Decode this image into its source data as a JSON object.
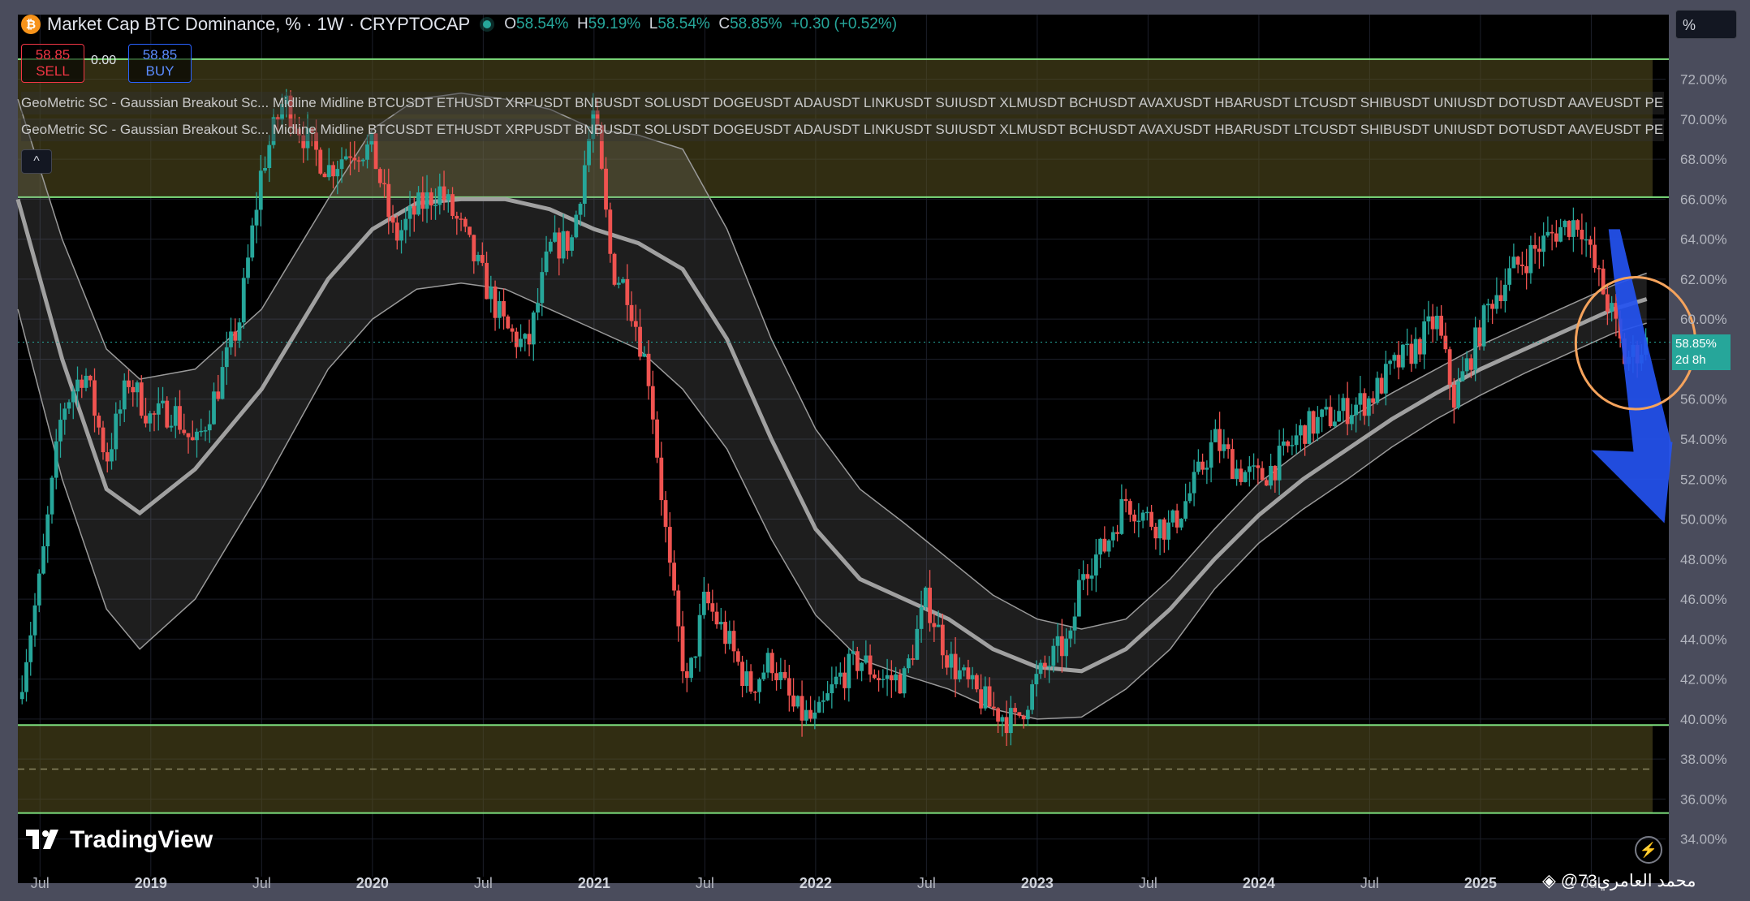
{
  "header": {
    "coin_symbol": "₿",
    "title": "Market Cap BTC Dominance, % · 1W · CRYPTOCAP",
    "ohlc": [
      {
        "k": "O",
        "v": "58.54%"
      },
      {
        "k": "H",
        "v": "59.19%"
      },
      {
        "k": "L",
        "v": "58.54%"
      },
      {
        "k": "C",
        "v": "58.85%"
      },
      {
        "k": "",
        "v": "+0.30 (+0.52%)"
      }
    ]
  },
  "trade": {
    "sell_price": "58.85",
    "sell_label": "SELL",
    "spread": "0.00",
    "buy_price": "58.85",
    "buy_label": "BUY"
  },
  "indicators": [
    "GeoMetric SC - Gaussian Breakout Sc... Midline Midline BTCUSDT ETHUSDT XRPUSDT BNBUSDT SOLUSDT DOGEUSDT ADAUSDT LINKUSDT SUIUSDT XLMUSDT BCHUSDT AVAXUSDT HBARUSDT LTCUSDT SHIBUSDT UNIUSDT DOTUSDT AAVEUSDT PE",
    "GeoMetric SC - Gaussian Breakout Sc... Midline Midline BTCUSDT ETHUSDT XRPUSDT BNBUSDT SOLUSDT DOGEUSDT ADAUSDT LINKUSDT SUIUSDT XLMUSDT BCHUSDT AVAXUSDT HBARUSDT LTCUSDT SHIBUSDT UNIUSDT DOTUSDT AAVEUSDT PE"
  ],
  "collapse_glyph": "^",
  "scale_button": "%",
  "last_price": {
    "value": "58.85%",
    "countdown": "2d 8h"
  },
  "logo": "TradingView",
  "watermark": "@محمد العامري73",
  "colors": {
    "up": "#26a69a",
    "down": "#ef5350",
    "zone": "#5a5220",
    "zone_line": "#7ee07e",
    "arrow": "#2452f0",
    "circle": "#f5a35c"
  },
  "chart_data": {
    "type": "candlestick",
    "timeframe": "1W",
    "y_unit": "%",
    "ylim": [
      33.5,
      73.2
    ],
    "y_ticks": [
      34,
      36,
      38,
      40,
      42,
      44,
      46,
      48,
      50,
      52,
      54,
      56,
      58,
      60,
      62,
      64,
      66,
      68,
      70,
      72
    ],
    "x_range": [
      2018.4,
      2025.85
    ],
    "x_ticks": [
      {
        "t": 2018.5,
        "label": "Jul"
      },
      {
        "t": 2019.0,
        "label": "2019"
      },
      {
        "t": 2019.5,
        "label": "Jul"
      },
      {
        "t": 2020.0,
        "label": "2020"
      },
      {
        "t": 2020.5,
        "label": "Jul"
      },
      {
        "t": 2021.0,
        "label": "2021"
      },
      {
        "t": 2021.5,
        "label": "Jul"
      },
      {
        "t": 2022.0,
        "label": "2022"
      },
      {
        "t": 2022.5,
        "label": "Jul"
      },
      {
        "t": 2023.0,
        "label": "2023"
      },
      {
        "t": 2023.5,
        "label": "Jul"
      },
      {
        "t": 2024.0,
        "label": "2024"
      },
      {
        "t": 2024.5,
        "label": "Jul"
      },
      {
        "t": 2025.0,
        "label": "2025"
      },
      {
        "t": 2025.5,
        "label": "Jul"
      }
    ],
    "price_path": [
      [
        2018.4,
        41.0
      ],
      [
        2018.5,
        47.0
      ],
      [
        2018.6,
        55.5
      ],
      [
        2018.7,
        57.5
      ],
      [
        2018.8,
        53.0
      ],
      [
        2018.9,
        57.0
      ],
      [
        2019.0,
        55.0
      ],
      [
        2019.1,
        55.5
      ],
      [
        2019.2,
        53.5
      ],
      [
        2019.3,
        56.5
      ],
      [
        2019.4,
        60.0
      ],
      [
        2019.5,
        67.5
      ],
      [
        2019.6,
        71.0
      ],
      [
        2019.7,
        69.0
      ],
      [
        2019.8,
        67.5
      ],
      [
        2019.9,
        68.5
      ],
      [
        2020.0,
        68.5
      ],
      [
        2020.1,
        64.0
      ],
      [
        2020.2,
        65.5
      ],
      [
        2020.3,
        66.5
      ],
      [
        2020.4,
        64.5
      ],
      [
        2020.5,
        62.0
      ],
      [
        2020.6,
        59.5
      ],
      [
        2020.7,
        58.5
      ],
      [
        2020.8,
        63.5
      ],
      [
        2020.9,
        64.0
      ],
      [
        2021.0,
        70.5
      ],
      [
        2021.08,
        62.5
      ],
      [
        2021.15,
        61.5
      ],
      [
        2021.25,
        57.0
      ],
      [
        2021.35,
        46.5
      ],
      [
        2021.42,
        41.5
      ],
      [
        2021.5,
        46.0
      ],
      [
        2021.6,
        44.0
      ],
      [
        2021.7,
        41.5
      ],
      [
        2021.8,
        43.0
      ],
      [
        2021.9,
        40.5
      ],
      [
        2022.0,
        39.8
      ],
      [
        2022.1,
        42.0
      ],
      [
        2022.2,
        43.0
      ],
      [
        2022.3,
        42.0
      ],
      [
        2022.4,
        42.0
      ],
      [
        2022.5,
        46.0
      ],
      [
        2022.6,
        43.0
      ],
      [
        2022.7,
        41.5
      ],
      [
        2022.8,
        40.5
      ],
      [
        2022.9,
        39.8
      ],
      [
        2023.0,
        42.0
      ],
      [
        2023.1,
        43.5
      ],
      [
        2023.15,
        43.8
      ],
      [
        2023.2,
        47.5
      ],
      [
        2023.3,
        48.5
      ],
      [
        2023.4,
        51.0
      ],
      [
        2023.5,
        50.0
      ],
      [
        2023.6,
        49.5
      ],
      [
        2023.7,
        51.5
      ],
      [
        2023.8,
        54.0
      ],
      [
        2023.9,
        52.5
      ],
      [
        2024.0,
        52.0
      ],
      [
        2024.1,
        53.0
      ],
      [
        2024.2,
        54.5
      ],
      [
        2024.3,
        55.0
      ],
      [
        2024.4,
        55.5
      ],
      [
        2024.5,
        56.0
      ],
      [
        2024.6,
        57.5
      ],
      [
        2024.7,
        58.5
      ],
      [
        2024.8,
        60.0
      ],
      [
        2024.88,
        56.0
      ],
      [
        2024.95,
        58.0
      ],
      [
        2025.05,
        61.0
      ],
      [
        2025.15,
        62.5
      ],
      [
        2025.25,
        63.5
      ],
      [
        2025.35,
        64.5
      ],
      [
        2025.45,
        65.0
      ],
      [
        2025.5,
        63.0
      ],
      [
        2025.55,
        61.5
      ],
      [
        2025.6,
        60.0
      ],
      [
        2025.65,
        58.0
      ],
      [
        2025.7,
        58.3
      ],
      [
        2025.75,
        58.85
      ]
    ],
    "gaussian_midline": [
      [
        2018.4,
        66.0
      ],
      [
        2018.6,
        58.0
      ],
      [
        2018.8,
        51.5
      ],
      [
        2018.95,
        50.3
      ],
      [
        2019.2,
        52.5
      ],
      [
        2019.5,
        56.5
      ],
      [
        2019.8,
        62.0
      ],
      [
        2020.0,
        64.5
      ],
      [
        2020.2,
        65.8
      ],
      [
        2020.4,
        66.0
      ],
      [
        2020.6,
        66.0
      ],
      [
        2020.8,
        65.5
      ],
      [
        2021.0,
        64.5
      ],
      [
        2021.2,
        63.8
      ],
      [
        2021.4,
        62.5
      ],
      [
        2021.6,
        59.0
      ],
      [
        2021.8,
        54.0
      ],
      [
        2022.0,
        49.5
      ],
      [
        2022.2,
        47.0
      ],
      [
        2022.4,
        46.0
      ],
      [
        2022.6,
        45.0
      ],
      [
        2022.8,
        43.5
      ],
      [
        2023.0,
        42.6
      ],
      [
        2023.2,
        42.4
      ],
      [
        2023.4,
        43.5
      ],
      [
        2023.6,
        45.5
      ],
      [
        2023.8,
        48.0
      ],
      [
        2024.0,
        50.2
      ],
      [
        2024.2,
        52.0
      ],
      [
        2024.4,
        53.5
      ],
      [
        2024.6,
        55.0
      ],
      [
        2024.8,
        56.3
      ],
      [
        2025.0,
        57.5
      ],
      [
        2025.2,
        58.5
      ],
      [
        2025.4,
        59.5
      ],
      [
        2025.6,
        60.5
      ],
      [
        2025.75,
        61.0
      ]
    ],
    "gaussian_upper": [
      [
        2018.4,
        71.0
      ],
      [
        2018.6,
        64.0
      ],
      [
        2018.8,
        58.5
      ],
      [
        2018.95,
        57.0
      ],
      [
        2019.2,
        57.5
      ],
      [
        2019.5,
        60.5
      ],
      [
        2019.8,
        66.0
      ],
      [
        2020.0,
        69.5
      ],
      [
        2020.2,
        71.0
      ],
      [
        2020.4,
        71.3
      ],
      [
        2020.6,
        71.0
      ],
      [
        2020.8,
        70.5
      ],
      [
        2021.0,
        69.5
      ],
      [
        2021.2,
        69.2
      ],
      [
        2021.4,
        68.5
      ],
      [
        2021.6,
        64.5
      ],
      [
        2021.8,
        59.0
      ],
      [
        2022.0,
        54.5
      ],
      [
        2022.2,
        51.5
      ],
      [
        2022.4,
        49.8
      ],
      [
        2022.6,
        48.0
      ],
      [
        2022.8,
        46.2
      ],
      [
        2023.0,
        45.0
      ],
      [
        2023.2,
        44.5
      ],
      [
        2023.4,
        45.0
      ],
      [
        2023.6,
        47.0
      ],
      [
        2023.8,
        49.5
      ],
      [
        2024.0,
        51.8
      ],
      [
        2024.2,
        53.5
      ],
      [
        2024.4,
        55.0
      ],
      [
        2024.6,
        56.3
      ],
      [
        2024.8,
        57.5
      ],
      [
        2025.0,
        58.7
      ],
      [
        2025.2,
        59.7
      ],
      [
        2025.4,
        60.7
      ],
      [
        2025.6,
        61.7
      ],
      [
        2025.75,
        62.3
      ]
    ],
    "gaussian_lower": [
      [
        2018.4,
        60.5
      ],
      [
        2018.6,
        52.0
      ],
      [
        2018.8,
        45.5
      ],
      [
        2018.95,
        43.5
      ],
      [
        2019.2,
        46.0
      ],
      [
        2019.5,
        51.5
      ],
      [
        2019.8,
        57.5
      ],
      [
        2020.0,
        60.0
      ],
      [
        2020.2,
        61.5
      ],
      [
        2020.4,
        61.8
      ],
      [
        2020.6,
        61.5
      ],
      [
        2020.8,
        60.5
      ],
      [
        2021.0,
        59.5
      ],
      [
        2021.2,
        58.5
      ],
      [
        2021.4,
        56.5
      ],
      [
        2021.6,
        53.5
      ],
      [
        2021.8,
        49.0
      ],
      [
        2022.0,
        45.2
      ],
      [
        2022.2,
        43.0
      ],
      [
        2022.4,
        42.2
      ],
      [
        2022.6,
        41.5
      ],
      [
        2022.8,
        40.5
      ],
      [
        2023.0,
        40.0
      ],
      [
        2023.2,
        40.1
      ],
      [
        2023.4,
        41.5
      ],
      [
        2023.6,
        43.5
      ],
      [
        2023.8,
        46.5
      ],
      [
        2024.0,
        48.8
      ],
      [
        2024.2,
        50.5
      ],
      [
        2024.4,
        52.0
      ],
      [
        2024.6,
        53.6
      ],
      [
        2024.8,
        55.0
      ],
      [
        2025.0,
        56.2
      ],
      [
        2025.2,
        57.3
      ],
      [
        2025.4,
        58.3
      ],
      [
        2025.6,
        59.3
      ],
      [
        2025.75,
        59.8
      ]
    ],
    "zones": [
      {
        "name": "upper-zone",
        "from": 66.1,
        "to": 73.0
      },
      {
        "name": "lower-zone",
        "from": 35.3,
        "to": 39.7,
        "midline": 37.5
      }
    ],
    "annotations": {
      "circle": {
        "t": 2025.7,
        "price": 58.8,
        "rx_years": 0.27,
        "ry_pct": 3.3
      },
      "down_arrow": {
        "from": [
          2025.6,
          64.5
        ],
        "to": [
          2025.83,
          49.8
        ]
      }
    }
  }
}
